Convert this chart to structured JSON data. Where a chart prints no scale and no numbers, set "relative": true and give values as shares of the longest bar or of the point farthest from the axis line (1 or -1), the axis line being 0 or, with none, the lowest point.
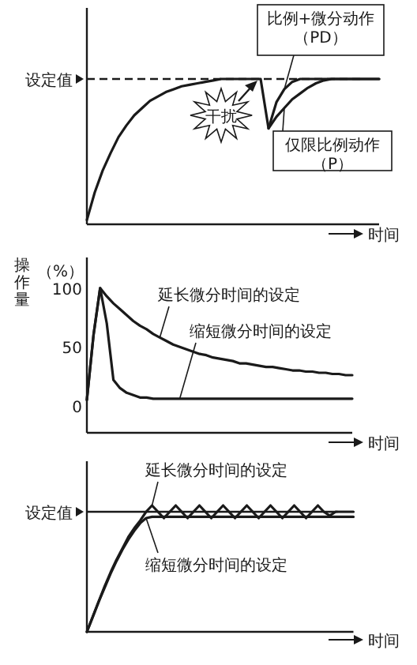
{
  "chart_data": [
    {
      "type": "line",
      "relative": true,
      "xlabel": "时间",
      "categories": [
        null,
        null,
        null,
        null,
        null,
        null,
        null,
        null,
        null,
        null,
        null,
        null,
        null,
        null,
        null,
        null,
        null,
        null,
        null,
        null,
        null,
        null,
        null,
        null,
        null,
        null,
        null,
        null,
        null,
        null,
        null,
        null,
        null,
        null,
        null,
        null,
        null,
        null
      ],
      "series": [
        {
          "name": "仅限比例动作（P）",
          "color": "#1a1a1a",
          "values": [
            0.03,
            0.22,
            0.37,
            0.49,
            0.6,
            0.68,
            0.75,
            0.8,
            0.85,
            0.88,
            0.91,
            0.93,
            0.95,
            0.96,
            0.97,
            0.98,
            0.99,
            1,
            1,
            1,
            1,
            1,
            1,
            0.66,
            0.74,
            0.8,
            0.86,
            0.9,
            0.94,
            0.97,
            0.99,
            1,
            1,
            1,
            1,
            1,
            1,
            1
          ]
        },
        {
          "name": "比例+微分动作（PD）",
          "color": "#1a1a1a",
          "values": [
            null,
            null,
            null,
            null,
            null,
            null,
            null,
            null,
            null,
            null,
            null,
            null,
            null,
            null,
            null,
            null,
            null,
            null,
            null,
            null,
            null,
            null,
            null,
            0.66,
            0.84,
            0.93,
            0.98,
            1,
            1,
            1,
            1,
            1,
            1,
            1,
            1,
            1,
            1,
            1
          ]
        }
      ],
      "ref_lines": [
        {
          "axis": "y",
          "value": 1,
          "label": "设定值",
          "line_style": "dashed"
        }
      ],
      "annotations": [
        "干扰"
      ]
    },
    {
      "type": "line",
      "xlabel": "时间",
      "ylabel": "操作量（%）",
      "ylim": [
        -23,
        126
      ],
      "yticks": [
        0,
        50,
        100
      ],
      "categories": [
        null,
        null,
        null,
        null,
        null,
        null,
        null,
        null,
        null,
        null,
        null,
        null,
        null,
        null,
        null,
        null,
        null,
        null,
        null,
        null,
        null,
        null,
        null,
        null,
        null,
        null,
        null,
        null,
        null,
        null,
        null,
        null,
        null,
        null,
        null,
        null,
        null,
        null,
        null,
        null,
        null
      ],
      "series": [
        {
          "name": "延长微分时间的设定",
          "color": "#1a1a1a",
          "values": [
            5,
            60,
            100,
            93,
            87,
            82,
            77,
            72,
            68,
            65,
            61,
            58,
            55,
            52,
            50,
            48,
            46,
            44,
            43,
            41,
            40,
            39,
            38,
            36,
            36,
            35,
            34,
            33,
            33,
            32,
            31,
            30,
            30,
            29,
            29,
            28,
            28,
            27,
            27,
            26,
            26
          ]
        },
        {
          "name": "缩短微分时间的设定",
          "color": "#1a1a1a",
          "values": [
            5,
            60,
            100,
            70,
            22,
            15,
            11,
            9,
            7,
            7,
            6,
            6,
            6,
            6,
            6,
            6,
            6,
            6,
            6,
            6,
            6,
            6,
            6,
            6,
            6,
            6,
            6,
            6,
            6,
            6,
            6,
            6,
            6,
            6,
            6,
            6,
            6,
            6,
            6,
            6,
            6
          ]
        }
      ]
    },
    {
      "type": "line",
      "relative": true,
      "xlabel": "时间",
      "categories": [
        null,
        null,
        null,
        null,
        null,
        null,
        null,
        null,
        null,
        null,
        null,
        null,
        null,
        null,
        null,
        null,
        null,
        null,
        null,
        null,
        null,
        null,
        null,
        null,
        null,
        null,
        null,
        null,
        null,
        null,
        null,
        null,
        null,
        null,
        null,
        null,
        null,
        null,
        null,
        null,
        null,
        null,
        null,
        null,
        null,
        null
      ],
      "series": [
        {
          "name": "延长微分时间的设定",
          "color": "#1a1a1a",
          "values": [
            0,
            0.12,
            0.24,
            0.36,
            0.47,
            0.57,
            0.66,
            0.75,
            0.82,
            0.88,
            0.95,
            1,
            0.95,
            0.9,
            0.95,
            1,
            0.95,
            0.9,
            0.95,
            1,
            0.95,
            0.9,
            0.95,
            1,
            0.95,
            0.9,
            0.95,
            1,
            0.95,
            0.9,
            0.95,
            1,
            0.95,
            0.9,
            0.95,
            1,
            0.95,
            0.9,
            0.95,
            1,
            0.95,
            0.92,
            0.95,
            0.95,
            0.95,
            0.95
          ]
        },
        {
          "name": "缩短微分时间的设定",
          "color": "#1a1a1a",
          "values": [
            0,
            0.12,
            0.24,
            0.35,
            0.46,
            0.56,
            0.65,
            0.73,
            0.8,
            0.86,
            0.9,
            0.91,
            0.91,
            0.91,
            0.91,
            0.91,
            0.91,
            0.91,
            0.91,
            0.91,
            0.91,
            0.91,
            0.91,
            0.91,
            0.91,
            0.91,
            0.91,
            0.91,
            0.91,
            0.91,
            0.91,
            0.91,
            0.91,
            0.91,
            0.91,
            0.91,
            0.91,
            0.91,
            0.91,
            0.91,
            0.91,
            0.91,
            0.91,
            0.91,
            0.91,
            0.91
          ]
        }
      ],
      "ref_lines": [
        {
          "axis": "y",
          "value": 0.95,
          "label": "设定值",
          "line_style": "solid"
        }
      ]
    }
  ]
}
